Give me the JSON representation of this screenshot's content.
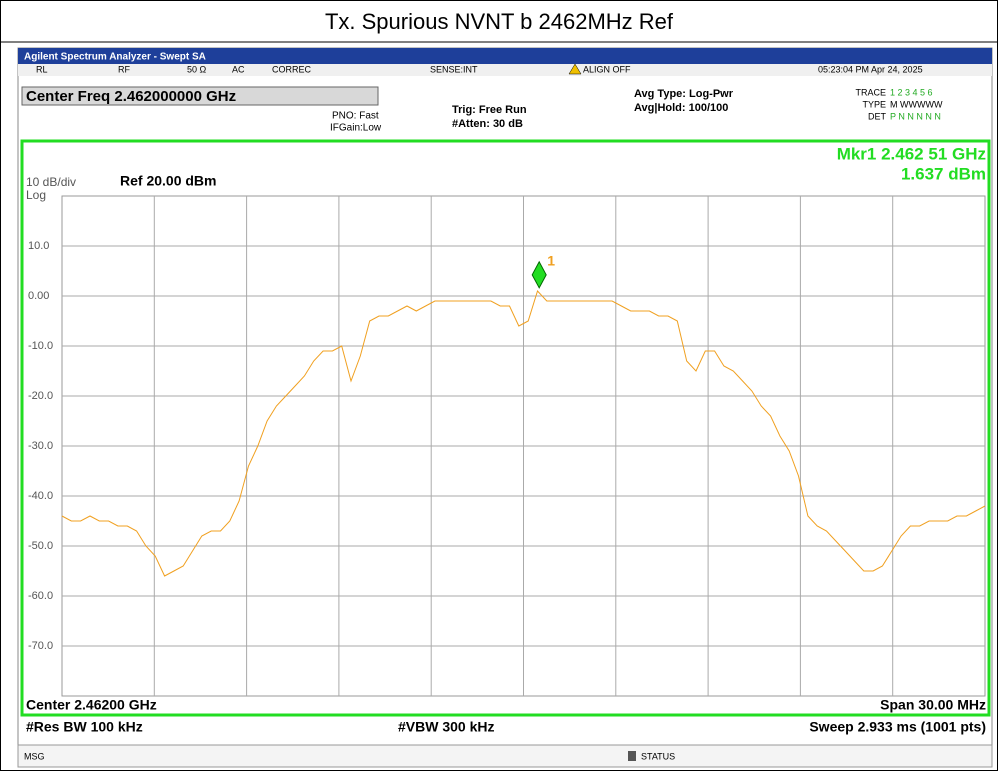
{
  "page_title": "Tx. Spurious NVNT b 2462MHz Ref",
  "header": {
    "app": "Agilent Spectrum Analyzer - Swept SA",
    "status": [
      "RL",
      "RF",
      "50 Ω",
      "AC",
      "CORREC",
      "SENSE:INT",
      "ALIGN OFF",
      "05:23:04 PM Apr 24, 2025"
    ],
    "center_freq": "Center Freq 2.462000000 GHz",
    "pno": "PNO: Fast",
    "ifgain": "IFGain:Low",
    "trig": "Trig: Free Run",
    "atten": "#Atten: 30 dB",
    "avg_type": "Avg Type: Log-Pwr",
    "avg_hold": "Avg|Hold: 100/100",
    "trace_label": "TRACE",
    "trace": "1 2 3 4 5 6",
    "type_label": "TYPE",
    "type": "M WWWWW",
    "det_label": "DET",
    "det": "P N N N N N"
  },
  "chart_data": {
    "type": "line",
    "scale": "10 dB/div",
    "ref": "Ref 20.00 dBm",
    "log": "Log",
    "color": "#f0a020",
    "xlim": [
      2.447,
      2.477
    ],
    "ylim": [
      -80,
      20
    ],
    "yticks": [
      {
        "value": 10,
        "label": "10.0"
      },
      {
        "value": 0,
        "label": "0.00"
      },
      {
        "value": -10,
        "label": "-10.0"
      },
      {
        "value": -20,
        "label": "-20.0"
      },
      {
        "value": -30,
        "label": "-30.0"
      },
      {
        "value": -40,
        "label": "-40.0"
      },
      {
        "value": -50,
        "label": "-50.0"
      },
      {
        "value": -60,
        "label": "-60.0"
      },
      {
        "value": -70,
        "label": "-70.0"
      }
    ],
    "grid": true,
    "values": [
      -44,
      -45,
      -45,
      -44,
      -45,
      -45,
      -46,
      -46,
      -47,
      -50,
      -52,
      -56,
      -55,
      -54,
      -51,
      -48,
      -47,
      -47,
      -45,
      -41,
      -34,
      -30,
      -25,
      -22,
      -20,
      -18,
      -16,
      -13,
      -11,
      -11,
      -10,
      -17,
      -12,
      -5,
      -4,
      -4,
      -3,
      -2,
      -3,
      -2,
      -1,
      -1,
      -1,
      -1,
      -1,
      -1,
      -1,
      -2,
      -2,
      -6,
      -5,
      1,
      -1,
      -1,
      -1,
      -1,
      -1,
      -1,
      -1,
      -1,
      -2,
      -3,
      -3,
      -3,
      -4,
      -4,
      -5,
      -13,
      -15,
      -11,
      -11,
      -14,
      -15,
      -17,
      -19,
      -22,
      -24,
      -28,
      -31,
      -36,
      -44,
      -46,
      -47,
      -49,
      -51,
      -53,
      -55,
      -55,
      -54,
      -51,
      -48,
      -46,
      -46,
      -45,
      -45,
      -45,
      -44,
      -44,
      -43,
      -42
    ],
    "marker": {
      "label": "1",
      "freq_text": "Mkr1 2.462 51 GHz",
      "value_text": "1.637 dBm",
      "x": 2.46251,
      "y": 1.637
    },
    "center": "Center 2.46200 GHz",
    "span": "Span 30.00 MHz",
    "rbw": "#Res BW 100 kHz",
    "vbw": "#VBW 300 kHz",
    "sweep": "Sweep  2.933 ms (1001 pts)"
  },
  "footer": {
    "msg": "MSG",
    "status": "STATUS"
  }
}
